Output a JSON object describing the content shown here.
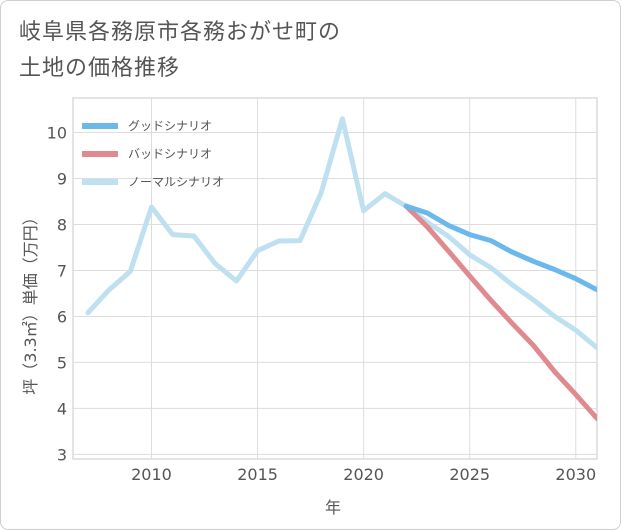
{
  "title": {
    "line1": "岐阜県各務原市各務おがせ町の",
    "line2": "土地の価格推移"
  },
  "chart_data": {
    "type": "line",
    "xlabel": "年",
    "ylabel": "坪（3.3㎡）単価（万円）",
    "xlim": [
      2006.3,
      2031
    ],
    "ylim": [
      2.9,
      10.75
    ],
    "xticks": [
      2010,
      2015,
      2020,
      2025,
      2030
    ],
    "xtick_labels": [
      "2010",
      "2015",
      "2020",
      "2025",
      "2030"
    ],
    "yticks": [
      3,
      4,
      5,
      6,
      7,
      8,
      9,
      10
    ],
    "ytick_labels": [
      "3",
      "4",
      "5",
      "6",
      "7",
      "8",
      "9",
      "10"
    ],
    "grid": true,
    "legend_position": "top-left",
    "series": [
      {
        "name": "グッドシナリオ",
        "color": "#6ab8ec",
        "x": [
          2022,
          2023,
          2024,
          2025,
          2026,
          2027,
          2028,
          2029,
          2030,
          2031
        ],
        "values": [
          8.4,
          8.25,
          7.98,
          7.78,
          7.65,
          7.4,
          7.2,
          7.02,
          6.82,
          6.58
        ]
      },
      {
        "name": "バッドシナリオ",
        "color": "#de8a8f",
        "x": [
          2022,
          2023,
          2024,
          2025,
          2026,
          2027,
          2028,
          2029,
          2030,
          2031
        ],
        "values": [
          8.4,
          7.95,
          7.42,
          6.88,
          6.35,
          5.85,
          5.37,
          4.8,
          4.3,
          3.78
        ]
      },
      {
        "name": "ノーマルシナリオ",
        "color": "#bfe0f0",
        "x": [
          2007,
          2008,
          2009,
          2010,
          2011,
          2012,
          2013,
          2014,
          2015,
          2016,
          2017,
          2018,
          2019,
          2020,
          2021,
          2022,
          2023,
          2024,
          2025,
          2026,
          2027,
          2028,
          2029,
          2030,
          2031
        ],
        "values": [
          6.08,
          6.58,
          6.98,
          8.38,
          7.78,
          7.75,
          7.15,
          6.77,
          7.43,
          7.64,
          7.65,
          8.69,
          10.3,
          8.3,
          8.67,
          8.4,
          8.05,
          7.74,
          7.34,
          7.06,
          6.69,
          6.36,
          6.0,
          5.7,
          5.32
        ]
      }
    ]
  }
}
